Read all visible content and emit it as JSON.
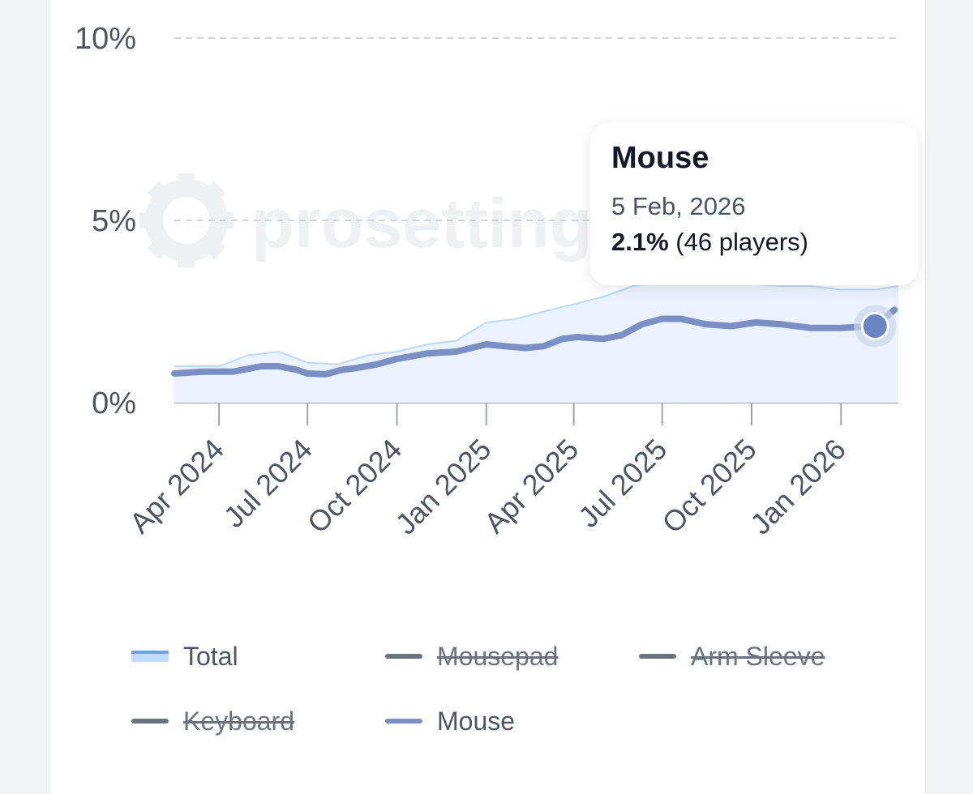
{
  "chart_data": {
    "type": "line",
    "y_ticks": [
      "0%",
      "5%",
      "10%"
    ],
    "ylim": [
      0,
      10
    ],
    "x_tick_labels": [
      "Apr 2024",
      "Jul 2024",
      "Oct 2024",
      "Jan 2025",
      "Apr 2025",
      "Jul 2025",
      "Oct 2025",
      "Jan 2026"
    ],
    "x_tick_dates": [
      "2024-04-01",
      "2024-07-01",
      "2024-10-01",
      "2025-01-01",
      "2025-04-01",
      "2025-07-01",
      "2025-10-01",
      "2026-01-01"
    ],
    "xlim": [
      "2024-02-15",
      "2026-03-01"
    ],
    "grid": true,
    "legend_position": "bottom",
    "series": [
      {
        "name": "Total",
        "kind": "area",
        "color": "#93c5fd",
        "x": [
          "2024-02-15",
          "2024-04-01",
          "2024-05-01",
          "2024-06-01",
          "2024-07-01",
          "2024-08-01",
          "2024-09-01",
          "2024-10-01",
          "2024-11-01",
          "2024-12-01",
          "2025-01-01",
          "2025-02-01",
          "2025-03-01",
          "2025-04-01",
          "2025-05-01",
          "2025-06-01",
          "2025-07-01",
          "2025-08-01",
          "2025-09-01",
          "2025-10-01",
          "2025-11-01",
          "2025-12-01",
          "2026-01-01",
          "2026-02-05",
          "2026-03-01"
        ],
        "values": [
          1.0,
          1.0,
          1.3,
          1.4,
          1.1,
          1.05,
          1.3,
          1.4,
          1.6,
          1.7,
          2.2,
          2.3,
          2.5,
          2.7,
          2.9,
          3.2,
          3.3,
          3.3,
          3.3,
          3.25,
          3.2,
          3.2,
          3.1,
          3.1,
          3.2
        ]
      },
      {
        "name": "Mouse",
        "kind": "line",
        "color": "#7b8fc4",
        "x": [
          "2024-02-15",
          "2024-03-15",
          "2024-04-15",
          "2024-05-15",
          "2024-06-01",
          "2024-06-20",
          "2024-07-01",
          "2024-07-20",
          "2024-08-05",
          "2024-08-20",
          "2024-09-10",
          "2024-10-01",
          "2024-11-01",
          "2024-12-01",
          "2025-01-01",
          "2025-01-20",
          "2025-02-10",
          "2025-03-01",
          "2025-03-20",
          "2025-04-05",
          "2025-05-01",
          "2025-05-20",
          "2025-06-10",
          "2025-07-01",
          "2025-07-20",
          "2025-08-15",
          "2025-09-10",
          "2025-10-05",
          "2025-11-01",
          "2025-12-01",
          "2026-01-01",
          "2026-02-05",
          "2026-02-25"
        ],
        "values": [
          0.8,
          0.85,
          0.85,
          1.0,
          1.0,
          0.9,
          0.8,
          0.78,
          0.9,
          0.95,
          1.05,
          1.2,
          1.35,
          1.4,
          1.6,
          1.55,
          1.5,
          1.55,
          1.75,
          1.8,
          1.75,
          1.85,
          2.15,
          2.3,
          2.3,
          2.15,
          2.1,
          2.2,
          2.15,
          2.05,
          2.05,
          2.1,
          2.55
        ]
      }
    ],
    "hidden_series": [
      "Mousepad",
      "Arm Sleeve",
      "Keyboard"
    ],
    "watermark": "prosettings"
  },
  "tooltip": {
    "title": "Mouse",
    "date": "5 Feb, 2026",
    "date_iso": "2026-02-05",
    "value": "2.1%",
    "players": "(46 players)",
    "point_value": 2.1
  },
  "legend": [
    {
      "label": "Total",
      "style": "area",
      "hidden": false
    },
    {
      "label": "Mousepad",
      "style": "gray",
      "hidden": true
    },
    {
      "label": "Arm Sleeve",
      "style": "gray",
      "hidden": true
    },
    {
      "label": "Keyboard",
      "style": "gray",
      "hidden": true
    },
    {
      "label": "Mouse",
      "style": "mouse",
      "hidden": false
    }
  ]
}
